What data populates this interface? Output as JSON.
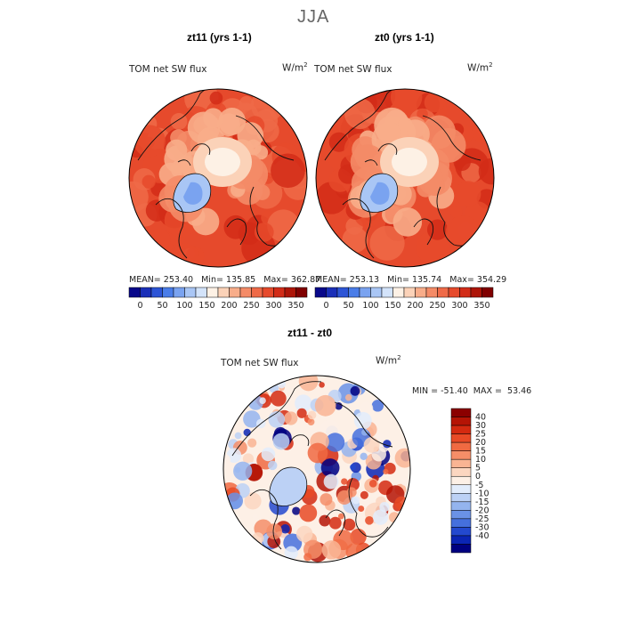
{
  "page": {
    "title": "JJA"
  },
  "panels": [
    {
      "heading": "zt11 (yrs 1-1)",
      "field": "TOM net SW flux",
      "units": "W/m",
      "units_exp": "2",
      "stats": {
        "mean_label": "MEAN=",
        "mean": "253.40",
        "min_label": "Min=",
        "min": "135.85",
        "max_label": "Max=",
        "max": "362.87"
      }
    },
    {
      "heading": "zt0 (yrs 1-1)",
      "field": "TOM net SW flux",
      "units": "W/m",
      "units_exp": "2",
      "stats": {
        "mean_label": "MEAN=",
        "mean": "253.13",
        "min_label": "Min=",
        "min": "135.74",
        "max_label": "Max=",
        "max": "354.29"
      }
    },
    {
      "heading": "zt11 - zt0",
      "field": "TOM net SW flux",
      "units": "W/m",
      "units_exp": "2",
      "stats": {
        "min_label": "MIN =",
        "min": "-51.40",
        "max_label": "MAX =",
        "max": "53.46"
      }
    }
  ],
  "chart_data": [
    {
      "type": "heatmap",
      "projection": "north-polar-stereographic",
      "title": "zt11 (yrs 1-1)",
      "variable": "TOM net SW flux",
      "units": "W/m2",
      "mean": 253.4,
      "min": 135.85,
      "max": 362.87,
      "colorbar": {
        "ticks": [
          "0",
          "50",
          "100",
          "150",
          "200",
          "250",
          "300",
          "350"
        ],
        "colors": [
          "#08088a",
          "#1a2fb8",
          "#2d55d6",
          "#4a7de8",
          "#7aa3f0",
          "#a9c6f5",
          "#d3e3fa",
          "#fdf1e5",
          "#fbd2b8",
          "#f8ad8a",
          "#f48b67",
          "#ef6a48",
          "#e64a2c",
          "#d22c18",
          "#ad1508",
          "#800000"
        ]
      }
    },
    {
      "type": "heatmap",
      "projection": "north-polar-stereographic",
      "title": "zt0 (yrs 1-1)",
      "variable": "TOM net SW flux",
      "units": "W/m2",
      "mean": 253.13,
      "min": 135.74,
      "max": 354.29,
      "colorbar": {
        "ticks": [
          "0",
          "50",
          "100",
          "150",
          "200",
          "250",
          "300",
          "350"
        ],
        "colors": [
          "#08088a",
          "#1a2fb8",
          "#2d55d6",
          "#4a7de8",
          "#7aa3f0",
          "#a9c6f5",
          "#d3e3fa",
          "#fdf1e5",
          "#fbd2b8",
          "#f8ad8a",
          "#f48b67",
          "#ef6a48",
          "#e64a2c",
          "#d22c18",
          "#ad1508",
          "#800000"
        ]
      }
    },
    {
      "type": "heatmap",
      "projection": "north-polar-stereographic",
      "title": "zt11 - zt0",
      "variable": "TOM net SW flux",
      "units": "W/m2",
      "min": -51.4,
      "max": 53.46,
      "colorbar": {
        "ticks": [
          "40",
          "30",
          "25",
          "20",
          "15",
          "10",
          "5",
          "0",
          "-5",
          "-10",
          "-15",
          "-20",
          "-25",
          "-30",
          "-40"
        ],
        "colors": [
          "#8b0000",
          "#b51405",
          "#d42a10",
          "#e84a26",
          "#f06a42",
          "#f58e68",
          "#f9b493",
          "#fbd6c0",
          "#fdf0e6",
          "#e2ecfb",
          "#bcd1f5",
          "#94b4ee",
          "#6a92e6",
          "#4570dd",
          "#2349cf",
          "#0b25b4",
          "#000080"
        ]
      }
    }
  ],
  "colors": {
    "warm_field": "#f06a42",
    "cool_field": "#9fbff0",
    "contour": "#111111"
  }
}
